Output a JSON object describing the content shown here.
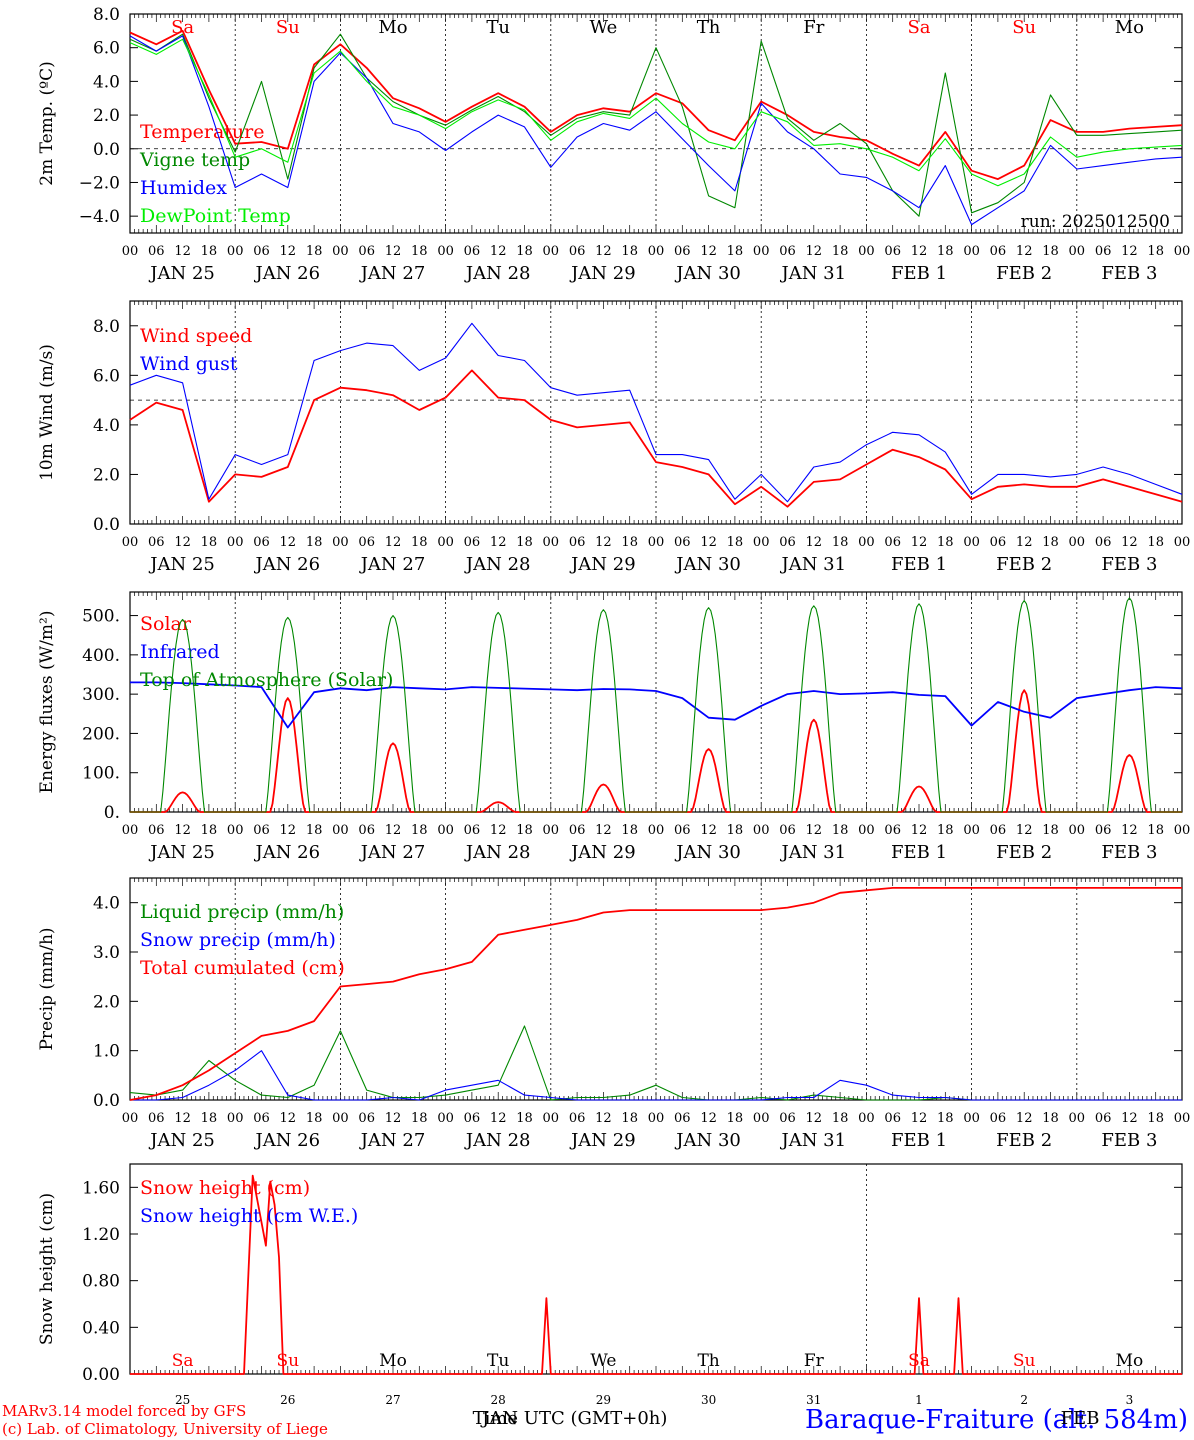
{
  "station": "Baraque-Fraiture (alt. 584m)",
  "credits": [
    "MARv3.14 model forced by GFS",
    "(c) Lab. of Climatology, University of Liege"
  ],
  "time_axis_label": "Time UTC (GMT+0h)",
  "bottom_month_label": "JAN",
  "bottom_month_label_2": "FEB",
  "run_label": "run: 2025012500",
  "days": [
    {
      "date": "JAN 25",
      "dow": "Sa",
      "num": "25",
      "weekend": true
    },
    {
      "date": "JAN 26",
      "dow": "Su",
      "num": "26",
      "weekend": true
    },
    {
      "date": "JAN 27",
      "dow": "Mo",
      "num": "27",
      "weekend": false
    },
    {
      "date": "JAN 28",
      "dow": "Tu",
      "num": "28",
      "weekend": false
    },
    {
      "date": "JAN 29",
      "dow": "We",
      "num": "29",
      "weekend": false
    },
    {
      "date": "JAN 30",
      "dow": "Th",
      "num": "30",
      "weekend": false
    },
    {
      "date": "JAN 31",
      "dow": "Fr",
      "num": "31",
      "weekend": false
    },
    {
      "date": "FEB  1",
      "dow": "Sa",
      "num": "1",
      "weekend": true
    },
    {
      "date": "FEB  2",
      "dow": "Su",
      "num": "2",
      "weekend": true
    },
    {
      "date": "FEB  3",
      "dow": "Mo",
      "num": "3",
      "weekend": false
    }
  ],
  "hour_labels": [
    "00",
    "06",
    "12",
    "18"
  ],
  "colors": {
    "red": "#ff0000",
    "green": "#008800",
    "blue": "#0000ff",
    "lightgreen": "#00ee00",
    "grid": "#000000",
    "weekend": "#ff0000"
  },
  "chart_data": [
    {
      "type": "line",
      "ylabel": "2m Temp. (ºC)",
      "ylim": [
        -5,
        8
      ],
      "yticks": [
        "8.0",
        "6.0",
        "4.0",
        "2.0",
        "0.0",
        "−2.0",
        "−4.0"
      ],
      "ytick_values": [
        8,
        6,
        4,
        2,
        0,
        -2,
        -4
      ],
      "ref_line": 0,
      "x_hours": [
        0,
        6,
        12,
        18,
        24,
        30,
        36,
        42,
        48,
        54,
        60,
        66,
        72,
        78,
        84,
        90,
        96,
        102,
        108,
        114,
        120,
        126,
        132,
        138,
        144,
        150,
        156,
        162,
        168,
        174,
        180,
        186,
        192,
        198,
        204,
        210,
        216,
        222,
        228,
        234,
        240
      ],
      "series": [
        {
          "name": "Temperature",
          "color": "red",
          "values": [
            6.9,
            6.2,
            7.0,
            3.5,
            0.3,
            0.4,
            0.0,
            5.0,
            6.2,
            4.8,
            3.0,
            2.4,
            1.6,
            2.5,
            3.3,
            2.5,
            1.0,
            2.0,
            2.4,
            2.2,
            3.3,
            2.7,
            1.1,
            0.5,
            2.8,
            2.0,
            1.0,
            0.7,
            0.5,
            -0.3,
            -1.0,
            1.0,
            -1.3,
            -1.8,
            -1.0,
            1.7,
            1.0,
            1.0,
            1.2,
            1.3,
            1.4
          ]
        },
        {
          "name": "Vigne temp",
          "color": "green",
          "values": [
            6.5,
            5.8,
            6.8,
            3.0,
            -0.2,
            4.0,
            -1.8,
            4.8,
            6.8,
            4.2,
            2.8,
            2.0,
            1.4,
            2.3,
            3.1,
            2.2,
            0.8,
            1.8,
            2.2,
            2.0,
            6.0,
            2.5,
            -2.8,
            -3.5,
            6.4,
            1.8,
            0.5,
            1.5,
            0.3,
            -2.5,
            -4.0,
            4.5,
            -3.8,
            -3.2,
            -2.0,
            3.2,
            0.8,
            0.8,
            0.9,
            1.0,
            1.1
          ]
        },
        {
          "name": "Humidex",
          "color": "blue",
          "values": [
            6.7,
            5.8,
            6.7,
            2.5,
            -2.3,
            -1.5,
            -2.3,
            4.0,
            5.7,
            4.2,
            1.5,
            1.0,
            -0.1,
            1.0,
            2.0,
            1.3,
            -1.1,
            0.7,
            1.5,
            1.1,
            2.2,
            0.6,
            -1.0,
            -2.5,
            2.7,
            1.0,
            0.0,
            -1.5,
            -1.7,
            -2.5,
            -3.5,
            -1.0,
            -4.5,
            -3.5,
            -2.5,
            0.2,
            -1.2,
            -1.0,
            -0.8,
            -0.6,
            -0.5
          ]
        },
        {
          "name": "DewPoint Temp",
          "color": "lightgreen",
          "values": [
            6.3,
            5.6,
            6.5,
            3.2,
            -0.5,
            0.0,
            -0.8,
            4.5,
            5.8,
            4.0,
            2.5,
            2.0,
            1.2,
            2.2,
            2.9,
            2.3,
            0.5,
            1.6,
            2.1,
            1.8,
            3.0,
            1.5,
            0.4,
            0.0,
            2.2,
            1.6,
            0.2,
            0.3,
            0.0,
            -0.5,
            -1.3,
            0.6,
            -1.5,
            -2.2,
            -1.5,
            0.7,
            -0.5,
            -0.2,
            0.0,
            0.1,
            0.2
          ]
        }
      ]
    },
    {
      "type": "line",
      "ylabel": "10m Wind (m/s)",
      "ylim": [
        0,
        9
      ],
      "yticks": [
        "8.0",
        "6.0",
        "4.0",
        "2.0",
        "0.0"
      ],
      "ytick_values": [
        8,
        6,
        4,
        2,
        0
      ],
      "ref_line": 5,
      "x_hours": [
        0,
        6,
        12,
        18,
        24,
        30,
        36,
        42,
        48,
        54,
        60,
        66,
        72,
        78,
        84,
        90,
        96,
        102,
        108,
        114,
        120,
        126,
        132,
        138,
        144,
        150,
        156,
        162,
        168,
        174,
        180,
        186,
        192,
        198,
        204,
        210,
        216,
        222,
        228,
        234,
        240
      ],
      "series": [
        {
          "name": "Wind speed",
          "color": "red",
          "values": [
            4.2,
            4.9,
            4.6,
            0.9,
            2.0,
            1.9,
            2.3,
            5.0,
            5.5,
            5.4,
            5.2,
            4.6,
            5.1,
            6.2,
            5.1,
            5.0,
            4.2,
            3.9,
            4.0,
            4.1,
            2.5,
            2.3,
            2.0,
            0.8,
            1.5,
            0.7,
            1.7,
            1.8,
            2.4,
            3.0,
            2.7,
            2.2,
            1.0,
            1.5,
            1.6,
            1.5,
            1.5,
            1.8,
            1.5,
            1.2,
            0.9
          ]
        },
        {
          "name": "Wind gust",
          "color": "blue",
          "values": [
            5.6,
            6.0,
            5.7,
            1.0,
            2.8,
            2.4,
            2.8,
            6.6,
            7.0,
            7.3,
            7.2,
            6.2,
            6.7,
            8.1,
            6.8,
            6.6,
            5.5,
            5.2,
            5.3,
            5.4,
            2.8,
            2.8,
            2.6,
            1.0,
            2.0,
            0.9,
            2.3,
            2.5,
            3.2,
            3.7,
            3.6,
            2.9,
            1.2,
            2.0,
            2.0,
            1.9,
            2.0,
            2.3,
            2.0,
            1.6,
            1.2
          ]
        }
      ]
    },
    {
      "type": "line",
      "ylabel": "Energy fluxes (W/m²)",
      "ylim": [
        0,
        560
      ],
      "yticks": [
        "500.",
        "400.",
        "300.",
        "200.",
        "100.",
        "0."
      ],
      "ytick_values": [
        500,
        400,
        300,
        200,
        100,
        0
      ],
      "series": [
        {
          "name": "Solar",
          "color": "red",
          "peaks": [
            50,
            290,
            175,
            25,
            70,
            160,
            235,
            65,
            310,
            145
          ]
        },
        {
          "name": "Infrared",
          "color": "blue",
          "x_hours": [
            0,
            6,
            12,
            18,
            24,
            30,
            36,
            42,
            48,
            54,
            60,
            66,
            72,
            78,
            84,
            90,
            96,
            102,
            108,
            114,
            120,
            126,
            132,
            138,
            144,
            150,
            156,
            162,
            168,
            174,
            180,
            186,
            192,
            198,
            204,
            210,
            216,
            222,
            228,
            234,
            240
          ],
          "values": [
            330,
            330,
            328,
            325,
            322,
            318,
            215,
            305,
            315,
            310,
            318,
            315,
            312,
            318,
            316,
            314,
            312,
            310,
            313,
            312,
            308,
            290,
            240,
            235,
            270,
            300,
            308,
            300,
            302,
            305,
            298,
            295,
            220,
            280,
            255,
            240,
            290,
            300,
            310,
            318,
            315
          ]
        },
        {
          "name": "Top of Atmosphere (Solar)",
          "color": "green",
          "peaks": [
            490,
            495,
            500,
            508,
            515,
            520,
            525,
            530,
            538,
            545
          ]
        }
      ]
    },
    {
      "type": "line",
      "ylabel": "Precip (mm/h)",
      "ylim": [
        0,
        4.5
      ],
      "yticks": [
        "4.0",
        "3.0",
        "2.0",
        "1.0",
        "0.0"
      ],
      "ytick_values": [
        4,
        3,
        2,
        1,
        0
      ],
      "x_hours": [
        0,
        6,
        12,
        18,
        24,
        30,
        36,
        42,
        48,
        54,
        60,
        66,
        72,
        78,
        84,
        90,
        96,
        102,
        108,
        114,
        120,
        126,
        132,
        138,
        144,
        150,
        156,
        162,
        168,
        174,
        180,
        186,
        192,
        198,
        204,
        210,
        216,
        222,
        228,
        234,
        240
      ],
      "series": [
        {
          "name": "Liquid precip (mm/h)",
          "color": "green",
          "values": [
            0.15,
            0.1,
            0.2,
            0.8,
            0.4,
            0.1,
            0.05,
            0.3,
            1.4,
            0.2,
            0.05,
            0.05,
            0.1,
            0.2,
            0.3,
            1.5,
            0.0,
            0.05,
            0.05,
            0.1,
            0.3,
            0.05,
            0.0,
            0.0,
            0.05,
            0.0,
            0.1,
            0.05,
            0.0,
            0.0,
            0.0,
            0.05,
            0.0,
            0.0,
            0.0,
            0.0,
            0.0,
            0.0,
            0.0,
            0.0,
            0.0
          ]
        },
        {
          "name": "Snow precip (mm/h)",
          "color": "blue",
          "values": [
            0.0,
            0.0,
            0.05,
            0.3,
            0.6,
            1.0,
            0.1,
            0.0,
            0.0,
            0.0,
            0.05,
            0.0,
            0.2,
            0.3,
            0.4,
            0.1,
            0.05,
            0.0,
            0.0,
            0.0,
            0.0,
            0.0,
            0.0,
            0.0,
            0.0,
            0.05,
            0.05,
            0.4,
            0.3,
            0.1,
            0.05,
            0.05,
            0.0,
            0.0,
            0.0,
            0.0,
            0.0,
            0.0,
            0.0,
            0.0,
            0.0
          ]
        },
        {
          "name": "Total cumulated (cm)",
          "color": "red",
          "values": [
            0.0,
            0.1,
            0.3,
            0.6,
            0.95,
            1.3,
            1.4,
            1.6,
            2.3,
            2.35,
            2.4,
            2.55,
            2.65,
            2.8,
            3.35,
            3.45,
            3.55,
            3.65,
            3.8,
            3.85,
            3.85,
            3.85,
            3.85,
            3.85,
            3.85,
            3.9,
            4.0,
            4.2,
            4.25,
            4.3,
            4.3,
            4.3,
            4.3,
            4.3,
            4.3,
            4.3,
            4.3,
            4.3,
            4.3,
            4.3,
            4.3
          ]
        }
      ]
    },
    {
      "type": "line",
      "ylabel": "Snow height (cm)",
      "ylim": [
        0,
        1.8
      ],
      "yticks": [
        "1.60",
        "1.20",
        "0.80",
        "0.40",
        "0.00"
      ],
      "ytick_values": [
        1.6,
        1.2,
        0.8,
        0.4,
        0.0
      ],
      "series": [
        {
          "name": "Snow height (cm)",
          "color": "red",
          "points": [
            [
              0,
              0
            ],
            [
              26,
              0
            ],
            [
              28,
              1.7
            ],
            [
              30,
              1.3
            ],
            [
              31,
              1.1
            ],
            [
              32,
              1.65
            ],
            [
              33,
              1.45
            ],
            [
              34,
              1.0
            ],
            [
              35,
              0
            ],
            [
              94,
              0
            ],
            [
              95,
              0.65
            ],
            [
              96,
              0
            ],
            [
              179,
              0
            ],
            [
              180,
              0.65
            ],
            [
              181,
              0
            ],
            [
              188,
              0
            ],
            [
              189,
              0.65
            ],
            [
              190,
              0
            ],
            [
              240,
              0
            ]
          ]
        },
        {
          "name": "Snow height (cm W.E.)",
          "color": "blue",
          "points": []
        }
      ]
    }
  ]
}
